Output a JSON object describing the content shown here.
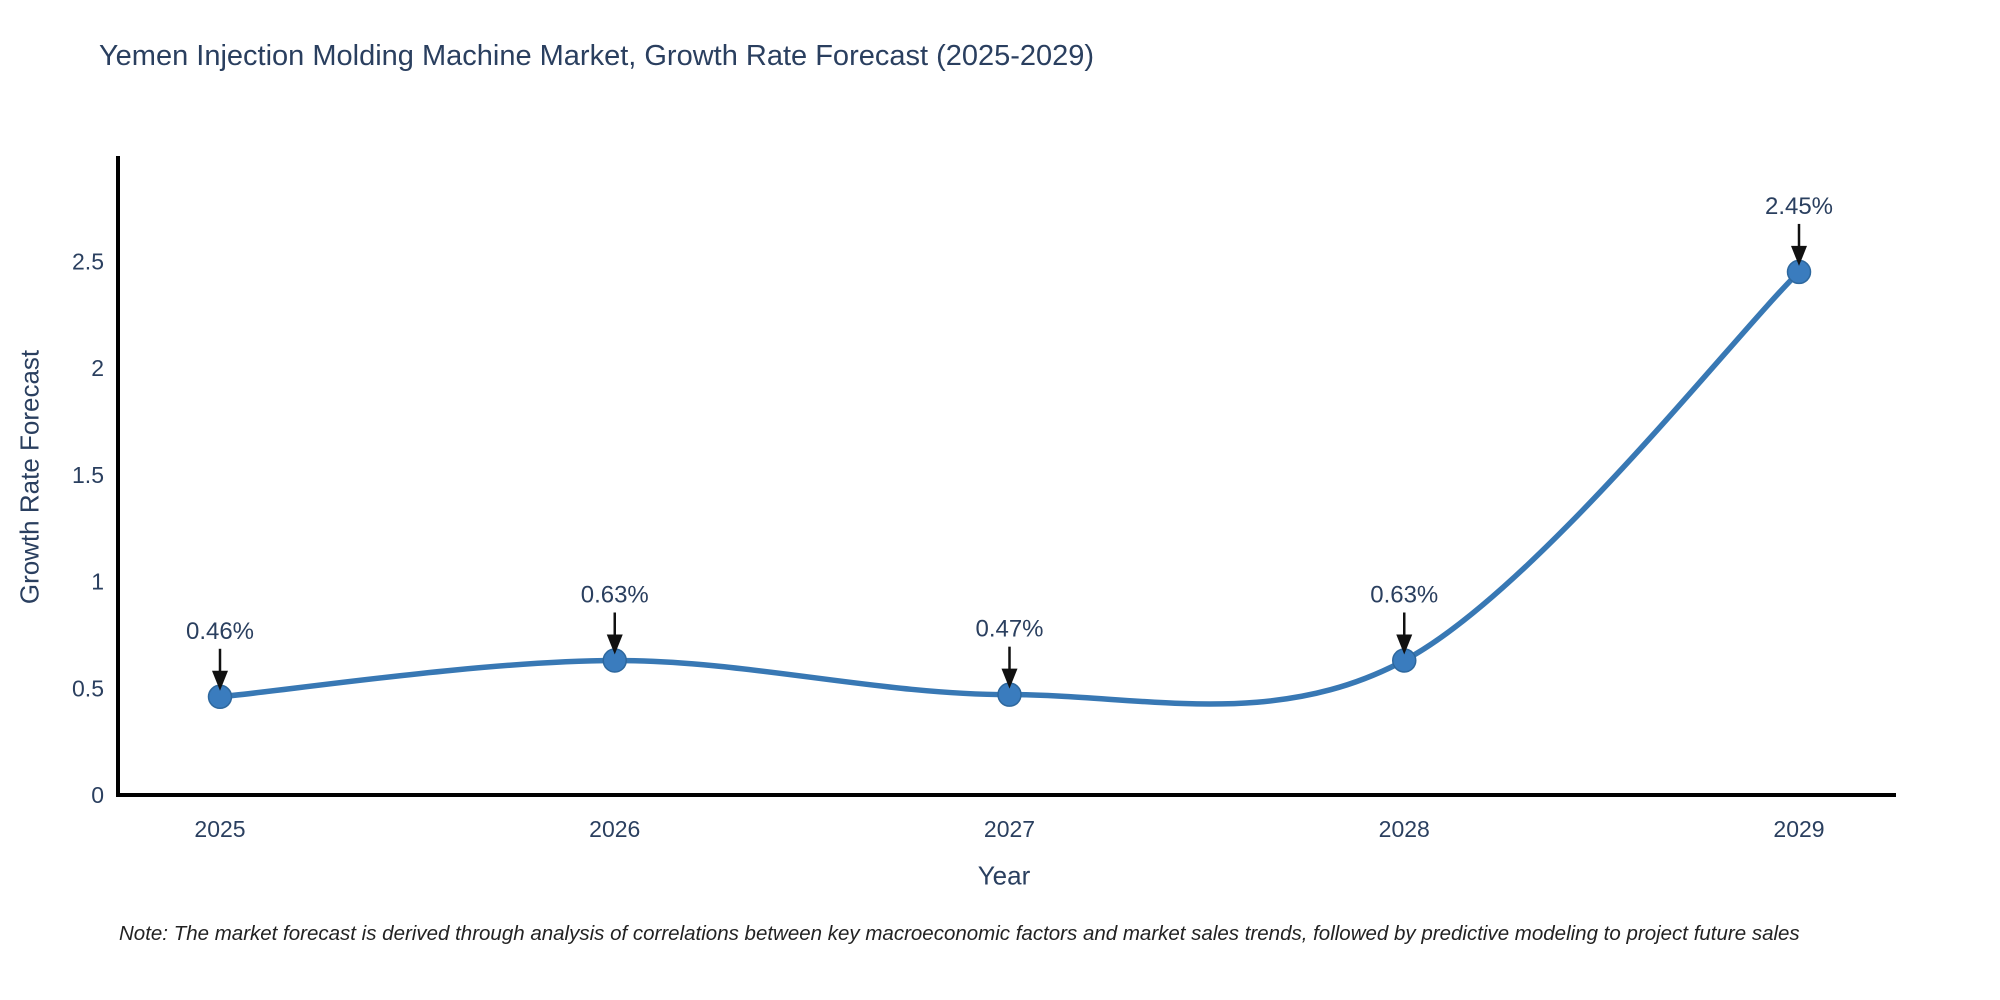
{
  "page": {
    "background": "#ffffff"
  },
  "chart_data": {
    "type": "line",
    "title": "Yemen Injection Molding Machine Market, Growth Rate Forecast (2025-2029)",
    "xlabel": "Year",
    "ylabel": "Growth Rate Forecast",
    "categories": [
      "2025",
      "2026",
      "2027",
      "2028",
      "2029"
    ],
    "series": [
      {
        "name": "Growth Rate Forecast",
        "values": [
          0.46,
          0.63,
          0.47,
          0.63,
          2.45
        ],
        "point_labels": [
          "0.46%",
          "0.63%",
          "0.47%",
          "0.63%",
          "2.45%"
        ]
      }
    ],
    "yticks": [
      0,
      0.5,
      1,
      1.5,
      2,
      2.5
    ],
    "ylim": [
      0,
      2.95
    ],
    "line_shape": "spline",
    "grid": false,
    "legend_position": "none",
    "colors": {
      "line": "#3878b4",
      "marker_fill": "#3a7cbe",
      "marker_edge": "#2e689e",
      "axis_line": "#000000",
      "tick_text": "#2a3f5f",
      "annotation_text": "#2a3f5f",
      "annotation_arrow": "#111111",
      "title_text": "#2a3f5f",
      "note_text": "#222222"
    },
    "note": "Note: The market forecast is derived through analysis of correlations between key macroeconomic factors and market sales trends, followed by predictive modeling to project future sales"
  }
}
